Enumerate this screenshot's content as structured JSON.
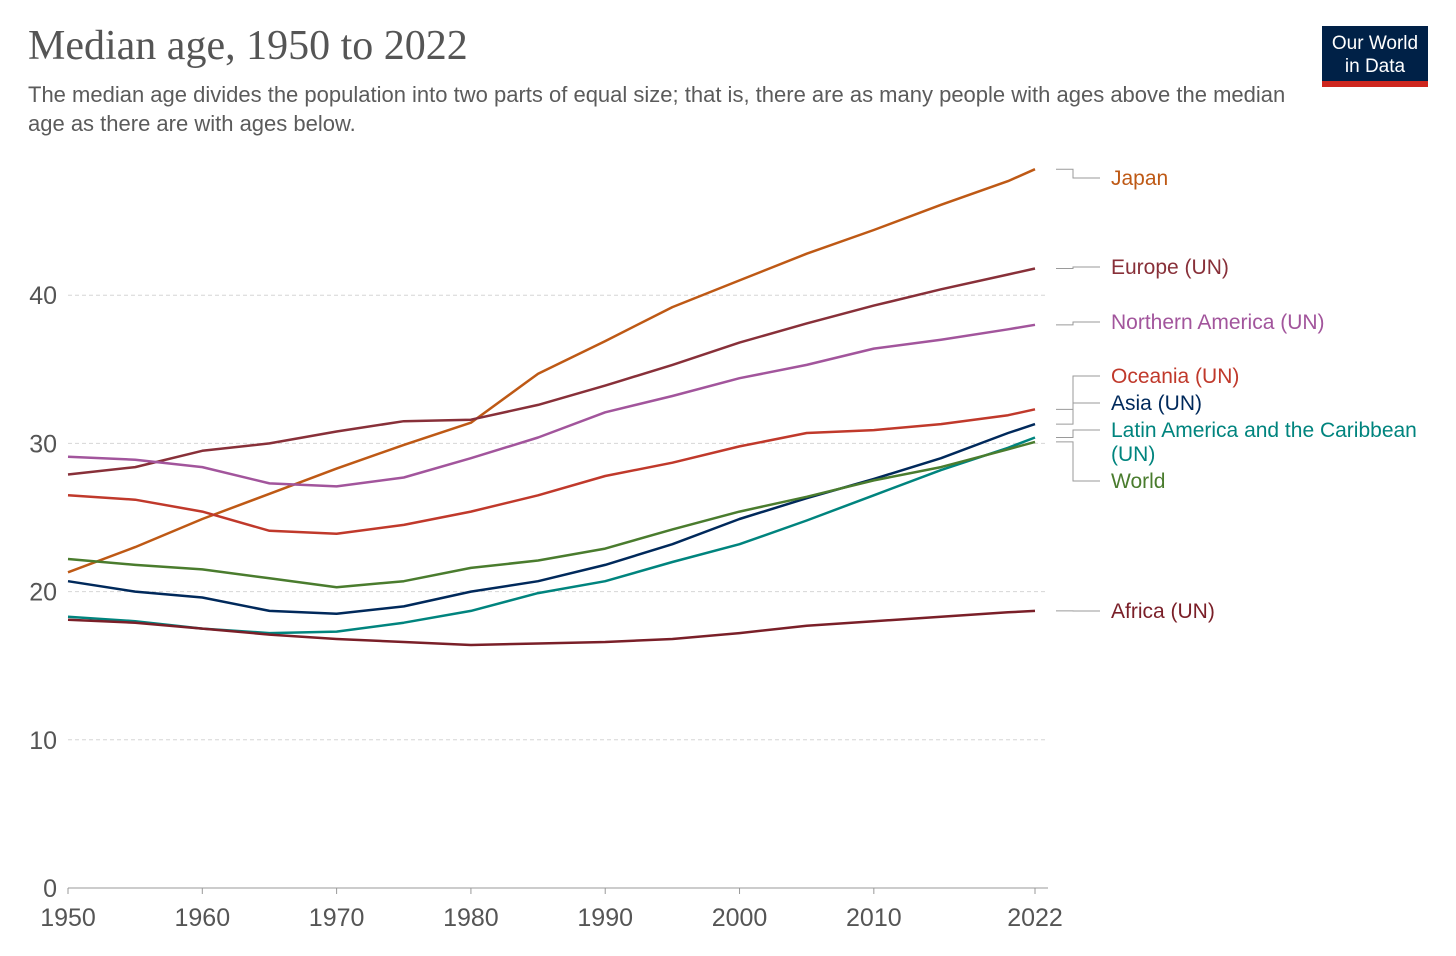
{
  "header": {
    "title": "Median age, 1950 to 2022",
    "subtitle": "The median age divides the population into two parts of equal size; that is, there are as many people with ages above the median age as there are with ages below."
  },
  "logo": {
    "line1": "Our World",
    "line2": "in Data",
    "bg_color": "#002147",
    "accent_color": "#ce261e"
  },
  "chart_data": {
    "type": "line",
    "title": "Median age, 1950 to 2022",
    "xlabel": "",
    "ylabel": "",
    "xlim": [
      1950,
      2022
    ],
    "ylim": [
      0,
      50
    ],
    "x_ticks": [
      "1950",
      "1960",
      "1970",
      "1980",
      "1990",
      "2000",
      "2010",
      "2022"
    ],
    "y_ticks": [
      "0",
      "10",
      "20",
      "30",
      "40"
    ],
    "grid": "horizontal dashed",
    "legend_placement": "right (labels at line ends)",
    "series": [
      {
        "name": "Japan",
        "color": "#be5915",
        "x": [
          1950,
          1955,
          1960,
          1965,
          1970,
          1975,
          1980,
          1985,
          1990,
          1995,
          2000,
          2005,
          2010,
          2015,
          2020,
          2022
        ],
        "y": [
          21.3,
          23.0,
          24.9,
          26.6,
          28.3,
          29.9,
          31.4,
          34.7,
          36.9,
          39.2,
          41.0,
          42.8,
          44.4,
          46.1,
          47.7,
          48.5
        ]
      },
      {
        "name": "Europe (UN)",
        "color": "#883039",
        "x": [
          1950,
          1955,
          1960,
          1965,
          1970,
          1975,
          1980,
          1985,
          1990,
          1995,
          2000,
          2005,
          2010,
          2015,
          2020,
          2022
        ],
        "y": [
          27.9,
          28.4,
          29.5,
          30.0,
          30.8,
          31.5,
          31.6,
          32.6,
          33.9,
          35.3,
          36.8,
          38.1,
          39.3,
          40.4,
          41.4,
          41.8
        ]
      },
      {
        "name": "Northern America (UN)",
        "color": "#a2559c",
        "x": [
          1950,
          1955,
          1960,
          1965,
          1970,
          1975,
          1980,
          1985,
          1990,
          1995,
          2000,
          2005,
          2010,
          2015,
          2020,
          2022
        ],
        "y": [
          29.1,
          28.9,
          28.4,
          27.3,
          27.1,
          27.7,
          29.0,
          30.4,
          32.1,
          33.2,
          34.4,
          35.3,
          36.4,
          37.0,
          37.7,
          38.0
        ]
      },
      {
        "name": "Oceania (UN)",
        "color": "#c0392b",
        "x": [
          1950,
          1955,
          1960,
          1965,
          1970,
          1975,
          1980,
          1985,
          1990,
          1995,
          2000,
          2005,
          2010,
          2015,
          2020,
          2022
        ],
        "y": [
          26.5,
          26.2,
          25.4,
          24.1,
          23.9,
          24.5,
          25.4,
          26.5,
          27.8,
          28.7,
          29.8,
          30.7,
          30.9,
          31.3,
          31.9,
          32.3
        ]
      },
      {
        "name": "Asia (UN)",
        "color": "#00295b",
        "x": [
          1950,
          1955,
          1960,
          1965,
          1970,
          1975,
          1980,
          1985,
          1990,
          1995,
          2000,
          2005,
          2010,
          2015,
          2020,
          2022
        ],
        "y": [
          20.7,
          20.0,
          19.6,
          18.7,
          18.5,
          19.0,
          20.0,
          20.7,
          21.8,
          23.2,
          24.9,
          26.3,
          27.6,
          29.0,
          30.7,
          31.3
        ]
      },
      {
        "name": "Latin America and the Caribbean (UN)",
        "color": "#00847e",
        "x": [
          1950,
          1955,
          1960,
          1965,
          1970,
          1975,
          1980,
          1985,
          1990,
          1995,
          2000,
          2005,
          2010,
          2015,
          2020,
          2022
        ],
        "y": [
          18.3,
          18.0,
          17.5,
          17.2,
          17.3,
          17.9,
          18.7,
          19.9,
          20.7,
          22.0,
          23.2,
          24.8,
          26.5,
          28.2,
          29.7,
          30.4
        ]
      },
      {
        "name": "World",
        "color": "#4a7c2e",
        "x": [
          1950,
          1955,
          1960,
          1965,
          1970,
          1975,
          1980,
          1985,
          1990,
          1995,
          2000,
          2005,
          2010,
          2015,
          2020,
          2022
        ],
        "y": [
          22.2,
          21.8,
          21.5,
          20.9,
          20.3,
          20.7,
          21.6,
          22.1,
          22.9,
          24.2,
          25.4,
          26.4,
          27.5,
          28.4,
          29.6,
          30.1
        ]
      },
      {
        "name": "Africa (UN)",
        "color": "#7a1f28",
        "x": [
          1950,
          1955,
          1960,
          1965,
          1970,
          1975,
          1980,
          1985,
          1990,
          1995,
          2000,
          2005,
          2010,
          2015,
          2020,
          2022
        ],
        "y": [
          18.1,
          17.9,
          17.5,
          17.1,
          16.8,
          16.6,
          16.4,
          16.5,
          16.6,
          16.8,
          17.2,
          17.7,
          18.0,
          18.3,
          18.6,
          18.7
        ]
      }
    ]
  }
}
